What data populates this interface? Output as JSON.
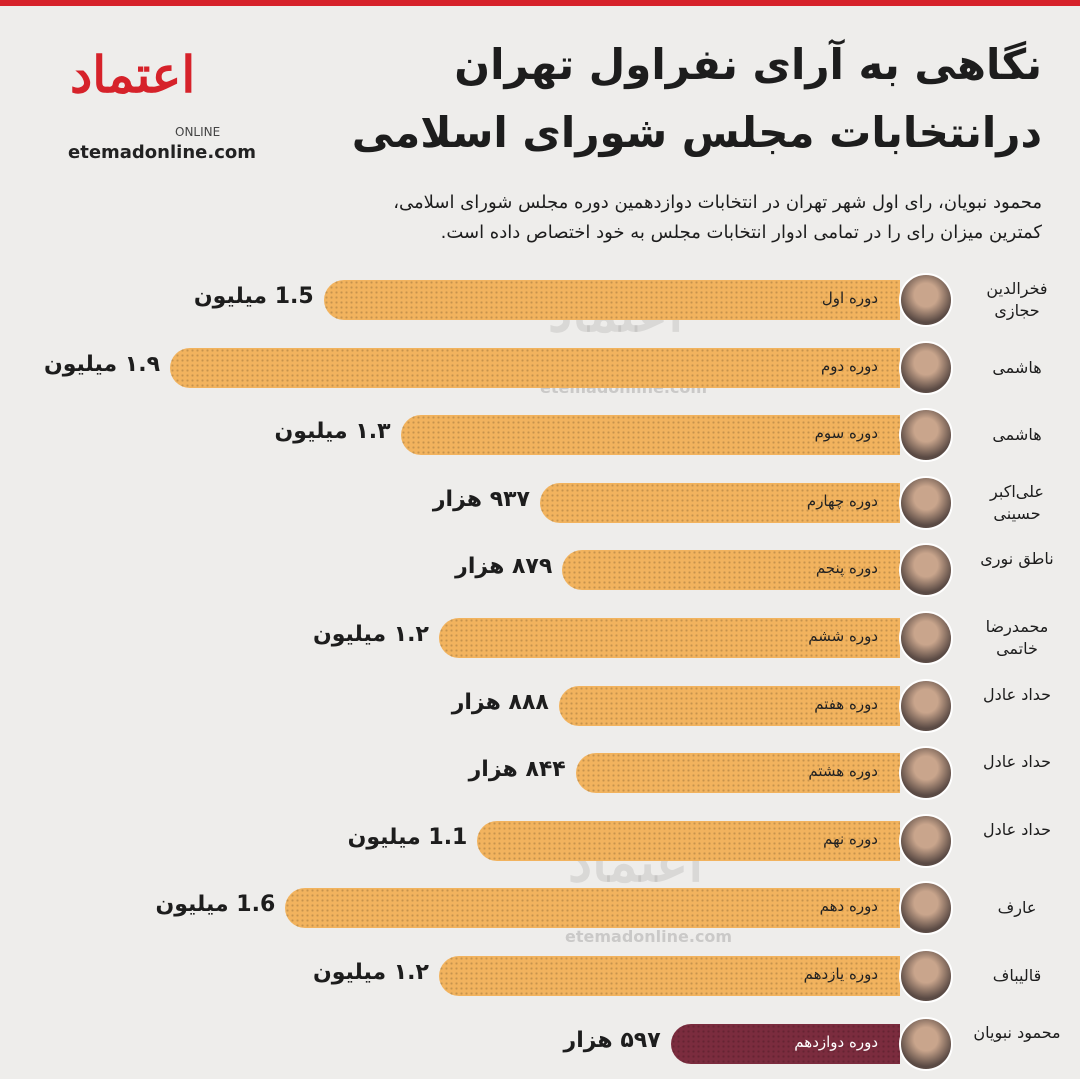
{
  "header": {
    "logo": "اعتماد",
    "logo_sub": "ONLINE",
    "site": "etemadonline.com"
  },
  "chart_data": {
    "type": "bar",
    "orientation": "horizontal",
    "title": [
      "نگاهی به آرای نفراول تهران",
      "درانتخابات مجلس شورای اسلامی"
    ],
    "subtitle": [
      "محمود نبویان، رای اول شهر تهران در انتخابات دوازدهمین دوره مجلس شورای اسلامی،",
      "کمترین میزان رای را در تمامی ادوار انتخابات مجلس به خود اختصاص داده است."
    ],
    "categories": [
      "دوره اول",
      "دوره دوم",
      "دوره سوم",
      "دوره چهارم",
      "دوره پنجم",
      "دوره ششم",
      "دوره هفتم",
      "دوره هشتم",
      "دوره نهم",
      "دوره دهم",
      "دوره یازدهم",
      "دوره دوازدهم"
    ],
    "names": [
      "فخرالدین حجازی",
      "هاشمی",
      "هاشمی",
      "علی‌اکبر حسینی",
      "ناطق نوری",
      "محمدرضا خاتمی",
      "حداد عادل",
      "حداد عادل",
      "حداد عادل",
      "عارف",
      "قالیباف",
      "محمود نبویان"
    ],
    "values": [
      1.5,
      1.9,
      1.3,
      0.937,
      0.879,
      1.2,
      0.888,
      0.844,
      1.1,
      1.6,
      1.2,
      0.597
    ],
    "value_labels": [
      "1.5 میلیون",
      "۱.۹ میلیون",
      "۱.۳ میلیون",
      "۹۳۷ هزار",
      "۸۷۹ هزار",
      "۱.۲ میلیون",
      "۸۸۸ هزار",
      "۸۴۴ هزار",
      "1.1 میلیون",
      "1.6 میلیون",
      "۱.۲ میلیون",
      "۵۹۷ هزار"
    ],
    "colors": [
      "#f2b35e",
      "#f2b35e",
      "#f2b35e",
      "#f2b35e",
      "#f2b35e",
      "#f2b35e",
      "#f2b35e",
      "#f2b35e",
      "#f2b35e",
      "#f2b35e",
      "#f2b35e",
      "#7b2c3e"
    ]
  }
}
